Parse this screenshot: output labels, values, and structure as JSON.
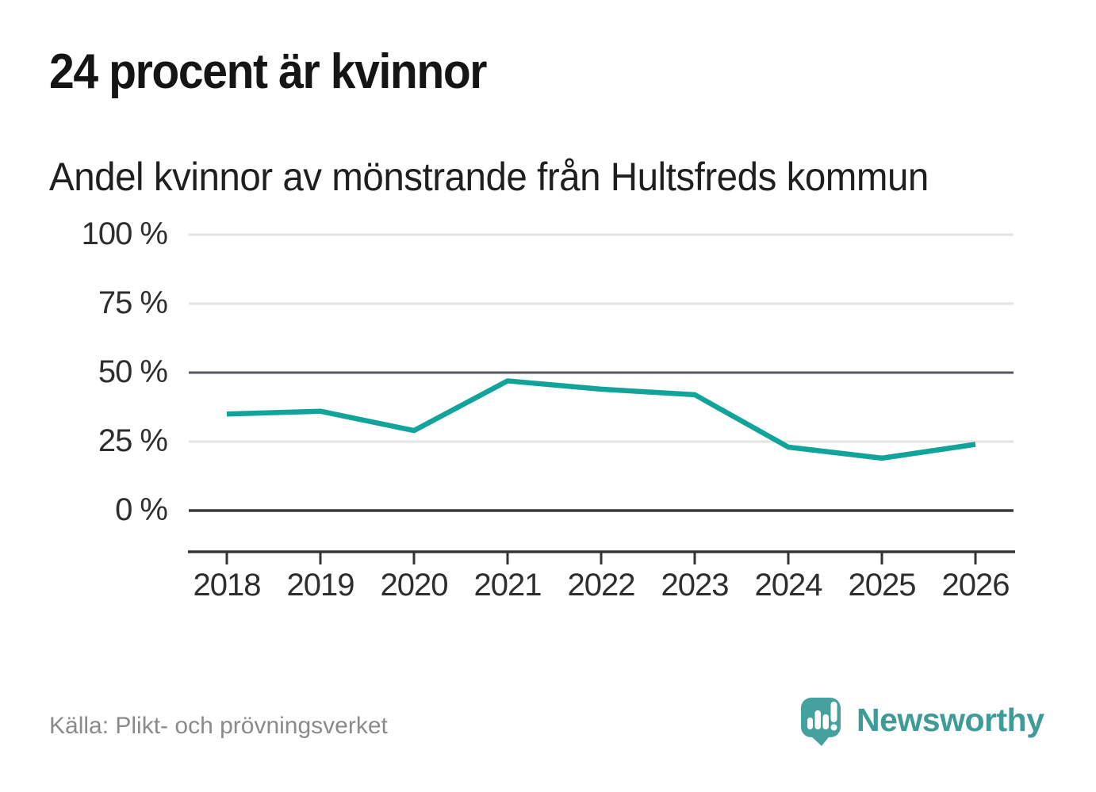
{
  "header": {
    "title": "24 procent är kvinnor",
    "subtitle": "Andel kvinnor av mönstrande från Hultsfreds kommun"
  },
  "chart_data": {
    "type": "line",
    "title": "24 procent är kvinnor",
    "subtitle": "Andel kvinnor av mönstrande från Hultsfreds kommun",
    "categories": [
      "2018",
      "2019",
      "2020",
      "2021",
      "2022",
      "2023",
      "2024",
      "2025",
      "2026"
    ],
    "series": [
      {
        "name": "Andel kvinnor av mönstrande",
        "values": [
          35,
          36,
          29,
          47,
          44,
          42,
          23,
          19,
          24
        ]
      }
    ],
    "unit": "%",
    "xlabel": "",
    "ylabel": "",
    "ylim": [
      0,
      100
    ],
    "yticks": [
      0,
      25,
      50,
      75,
      100
    ],
    "ytick_labels": [
      "0 %",
      "25 %",
      "50 %",
      "75 %",
      "100 %"
    ],
    "grid": true,
    "legend": "none",
    "line_color": "#12a49b",
    "grid_color": "#e3e3e3",
    "mid_grid_color": "#585862",
    "zero_line_color": "#3a3a3a",
    "axis_color": "#333333"
  },
  "footer": {
    "source": "Källa: Plikt- och prövningsverket",
    "logo_text": "Newsworthy",
    "brand_color": "#3d9b98",
    "icon_color": "#45a19d"
  }
}
